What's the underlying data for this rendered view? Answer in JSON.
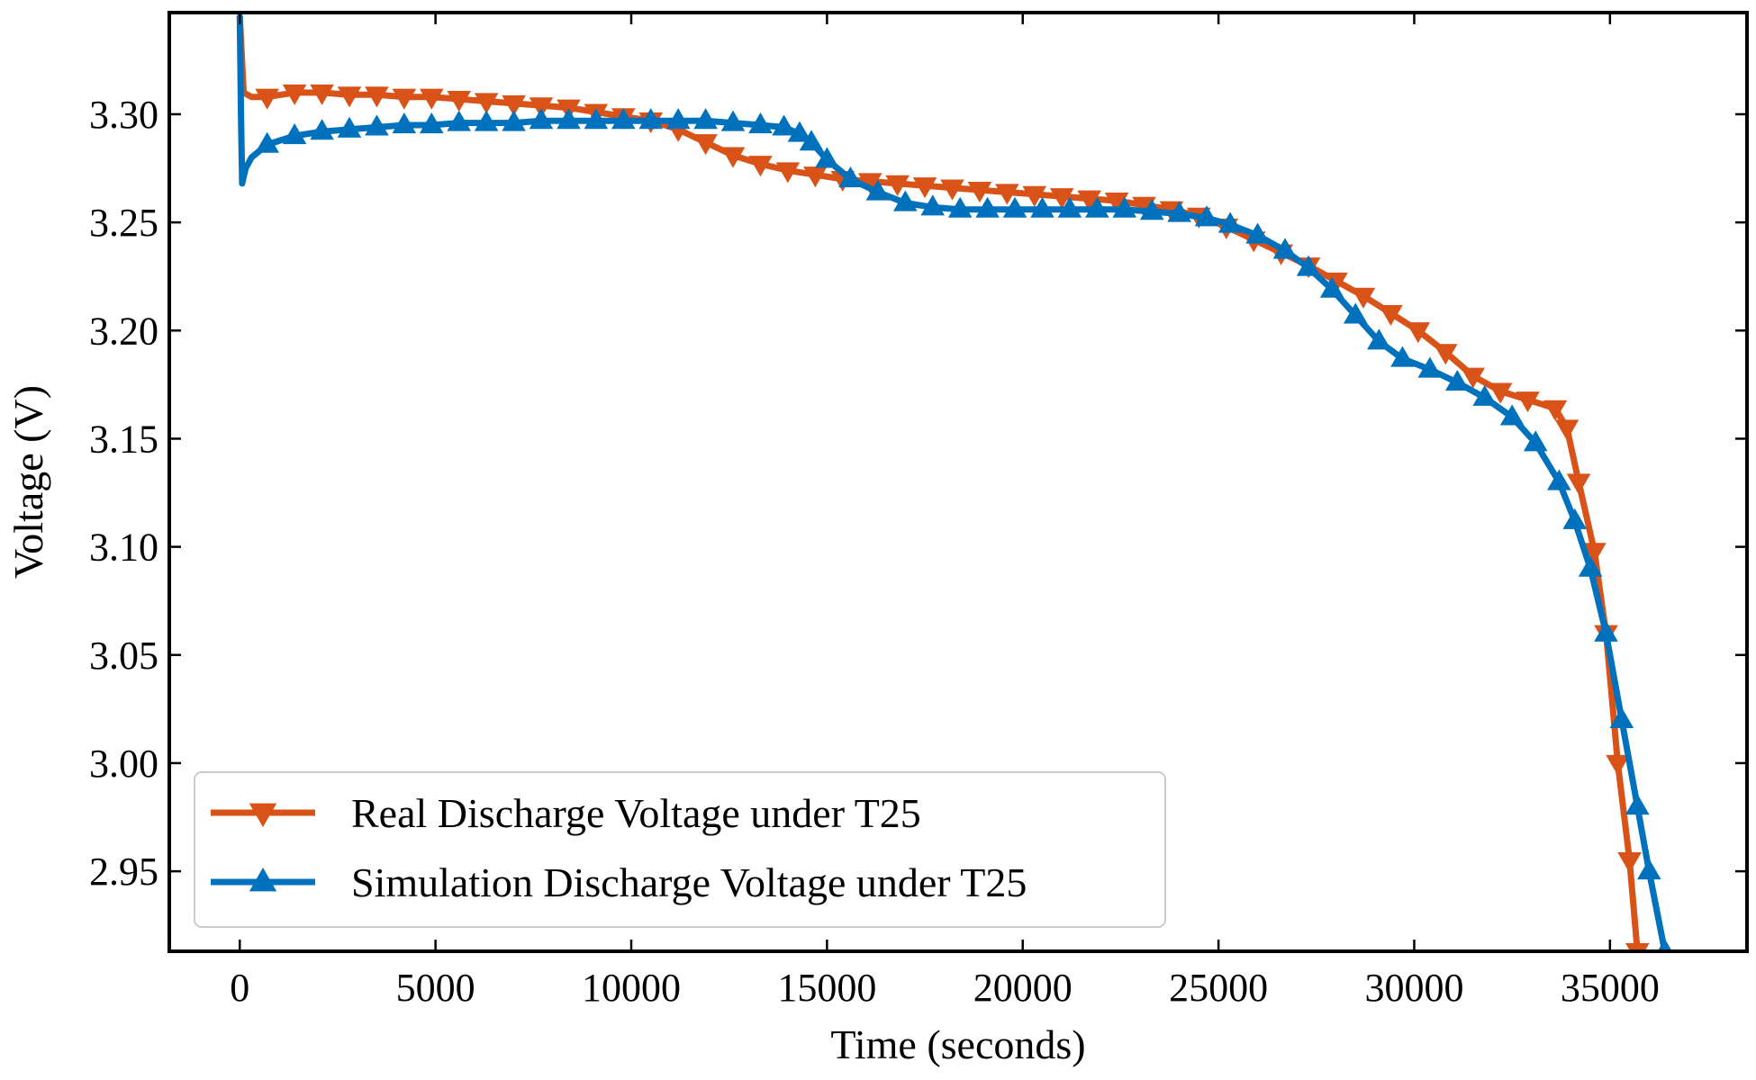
{
  "chart_data": {
    "type": "line",
    "title": "",
    "xlabel": "Time (seconds)",
    "ylabel": "Voltage (V)",
    "xlim": [
      -1800,
      38500
    ],
    "ylim": [
      2.913,
      3.347
    ],
    "xticks": [
      0,
      5000,
      10000,
      15000,
      20000,
      25000,
      30000,
      35000
    ],
    "xtick_labels": [
      "0",
      "5000",
      "10000",
      "15000",
      "20000",
      "25000",
      "30000",
      "35000"
    ],
    "yticks": [
      2.95,
      3.0,
      3.05,
      3.1,
      3.15,
      3.2,
      3.25,
      3.3
    ],
    "ytick_labels": [
      "2.95",
      "3.00",
      "3.05",
      "3.10",
      "3.15",
      "3.20",
      "3.25",
      "3.30"
    ],
    "grid": false,
    "legend_position": "bottom-left",
    "series": [
      {
        "name": "Real Discharge Voltage under T25",
        "color": "#d95319",
        "marker": "triangle-down",
        "x": [
          0,
          100,
          300,
          700,
          1400,
          2100,
          2800,
          3500,
          4200,
          4900,
          5600,
          6300,
          7000,
          7700,
          8400,
          9100,
          9800,
          10500,
          11200,
          11900,
          12600,
          13300,
          14000,
          14700,
          15400,
          16100,
          16800,
          17500,
          18200,
          18900,
          19600,
          20300,
          21000,
          21700,
          22400,
          23100,
          23800,
          24500,
          25200,
          25900,
          26600,
          27300,
          28000,
          28700,
          29400,
          30100,
          30800,
          31500,
          32200,
          32900,
          33600,
          33900,
          34200,
          34600,
          34900,
          35200,
          35500,
          35700
        ],
        "y": [
          3.345,
          3.31,
          3.308,
          3.308,
          3.31,
          3.31,
          3.309,
          3.309,
          3.308,
          3.308,
          3.307,
          3.306,
          3.305,
          3.304,
          3.303,
          3.301,
          3.299,
          3.297,
          3.293,
          3.287,
          3.281,
          3.277,
          3.274,
          3.272,
          3.27,
          3.269,
          3.268,
          3.267,
          3.266,
          3.265,
          3.264,
          3.263,
          3.262,
          3.261,
          3.26,
          3.258,
          3.256,
          3.253,
          3.248,
          3.242,
          3.236,
          3.23,
          3.223,
          3.216,
          3.208,
          3.2,
          3.19,
          3.179,
          3.172,
          3.168,
          3.164,
          3.155,
          3.13,
          3.098,
          3.06,
          3.0,
          2.955,
          2.913
        ]
      },
      {
        "name": "Simulation Discharge Voltage under T25",
        "color": "#0072bd",
        "marker": "triangle-up",
        "x": [
          0,
          30,
          60,
          150,
          300,
          700,
          1400,
          2100,
          2800,
          3500,
          4200,
          4900,
          5600,
          6300,
          7000,
          7700,
          8400,
          9100,
          9800,
          10500,
          11200,
          11900,
          12600,
          13300,
          13900,
          14300,
          14600,
          15000,
          15600,
          16300,
          17000,
          17700,
          18400,
          19100,
          19800,
          20500,
          21200,
          21900,
          22600,
          23300,
          24000,
          24700,
          25300,
          26000,
          26700,
          27300,
          27900,
          28500,
          29100,
          29700,
          30400,
          31100,
          31800,
          32500,
          33100,
          33700,
          34100,
          34500,
          34900,
          35300,
          35700,
          36000,
          36400
        ],
        "y": [
          3.345,
          3.3,
          3.268,
          3.275,
          3.28,
          3.286,
          3.29,
          3.292,
          3.293,
          3.294,
          3.295,
          3.295,
          3.296,
          3.296,
          3.296,
          3.297,
          3.297,
          3.297,
          3.297,
          3.297,
          3.297,
          3.297,
          3.296,
          3.295,
          3.294,
          3.291,
          3.287,
          3.279,
          3.27,
          3.264,
          3.259,
          3.257,
          3.256,
          3.256,
          3.256,
          3.256,
          3.256,
          3.256,
          3.256,
          3.255,
          3.254,
          3.252,
          3.249,
          3.244,
          3.237,
          3.229,
          3.219,
          3.207,
          3.195,
          3.187,
          3.182,
          3.176,
          3.169,
          3.16,
          3.148,
          3.13,
          3.112,
          3.09,
          3.06,
          3.02,
          2.98,
          2.95,
          2.913
        ]
      }
    ]
  }
}
